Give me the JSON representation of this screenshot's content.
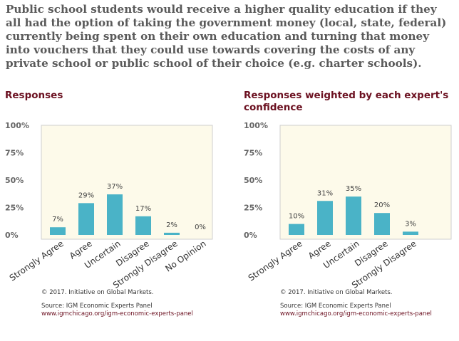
{
  "question": "Public school students would receive a higher quality education if they all had the option of taking the government money (local, state, federal) currently being spent on their own education and turning that money into vouchers that they could use towards covering the costs of any private school or public school of their choice (e.g. charter schools).",
  "colors": {
    "bar": "#4ab3c7",
    "plot_bg": "#fdfaea",
    "title": "#6b1020",
    "question": "#5a5a5a",
    "axis": "#cfcfcf"
  },
  "panels": [
    {
      "title": "Responses",
      "copyright": "© 2017. Initiative on Global Markets.",
      "source": "Source: IGM Economic Experts Panel",
      "url": "www.igmchicago.org/igm-economic-experts-panel"
    },
    {
      "title": "Responses weighted by each expert's confidence",
      "copyright": "© 2017. Initiative on Global Markets.",
      "source": "Source: IGM Economic Experts Panel",
      "url": "www.igmchicago.org/igm-economic-experts-panel"
    }
  ],
  "chart_data": [
    {
      "type": "bar",
      "title": "Responses",
      "categories": [
        "Strongly Agree",
        "Agree",
        "Uncertain",
        "Disagree",
        "Strongly Disagree",
        "No Opinion"
      ],
      "values": [
        7,
        29,
        37,
        17,
        2,
        0
      ],
      "value_labels": [
        "7%",
        "29%",
        "37%",
        "17%",
        "2%",
        "0%"
      ],
      "ytick_labels": [
        "100%",
        "75%",
        "50%",
        "25%",
        "0%"
      ],
      "yticks": [
        100,
        75,
        50,
        25,
        0
      ],
      "ylim": [
        0,
        100
      ],
      "grid": false,
      "legend": "none"
    },
    {
      "type": "bar",
      "title": "Responses weighted by each expert's confidence",
      "categories": [
        "Strongly Agree",
        "Agree",
        "Uncertain",
        "Disagree",
        "Strongly Disagree"
      ],
      "values": [
        10,
        31,
        35,
        20,
        3
      ],
      "value_labels": [
        "10%",
        "31%",
        "35%",
        "20%",
        "3%"
      ],
      "ytick_labels": [
        "100%",
        "75%",
        "50%",
        "25%",
        "0%"
      ],
      "yticks": [
        100,
        75,
        50,
        25,
        0
      ],
      "ylim": [
        0,
        100
      ],
      "grid": false,
      "legend": "none"
    }
  ]
}
